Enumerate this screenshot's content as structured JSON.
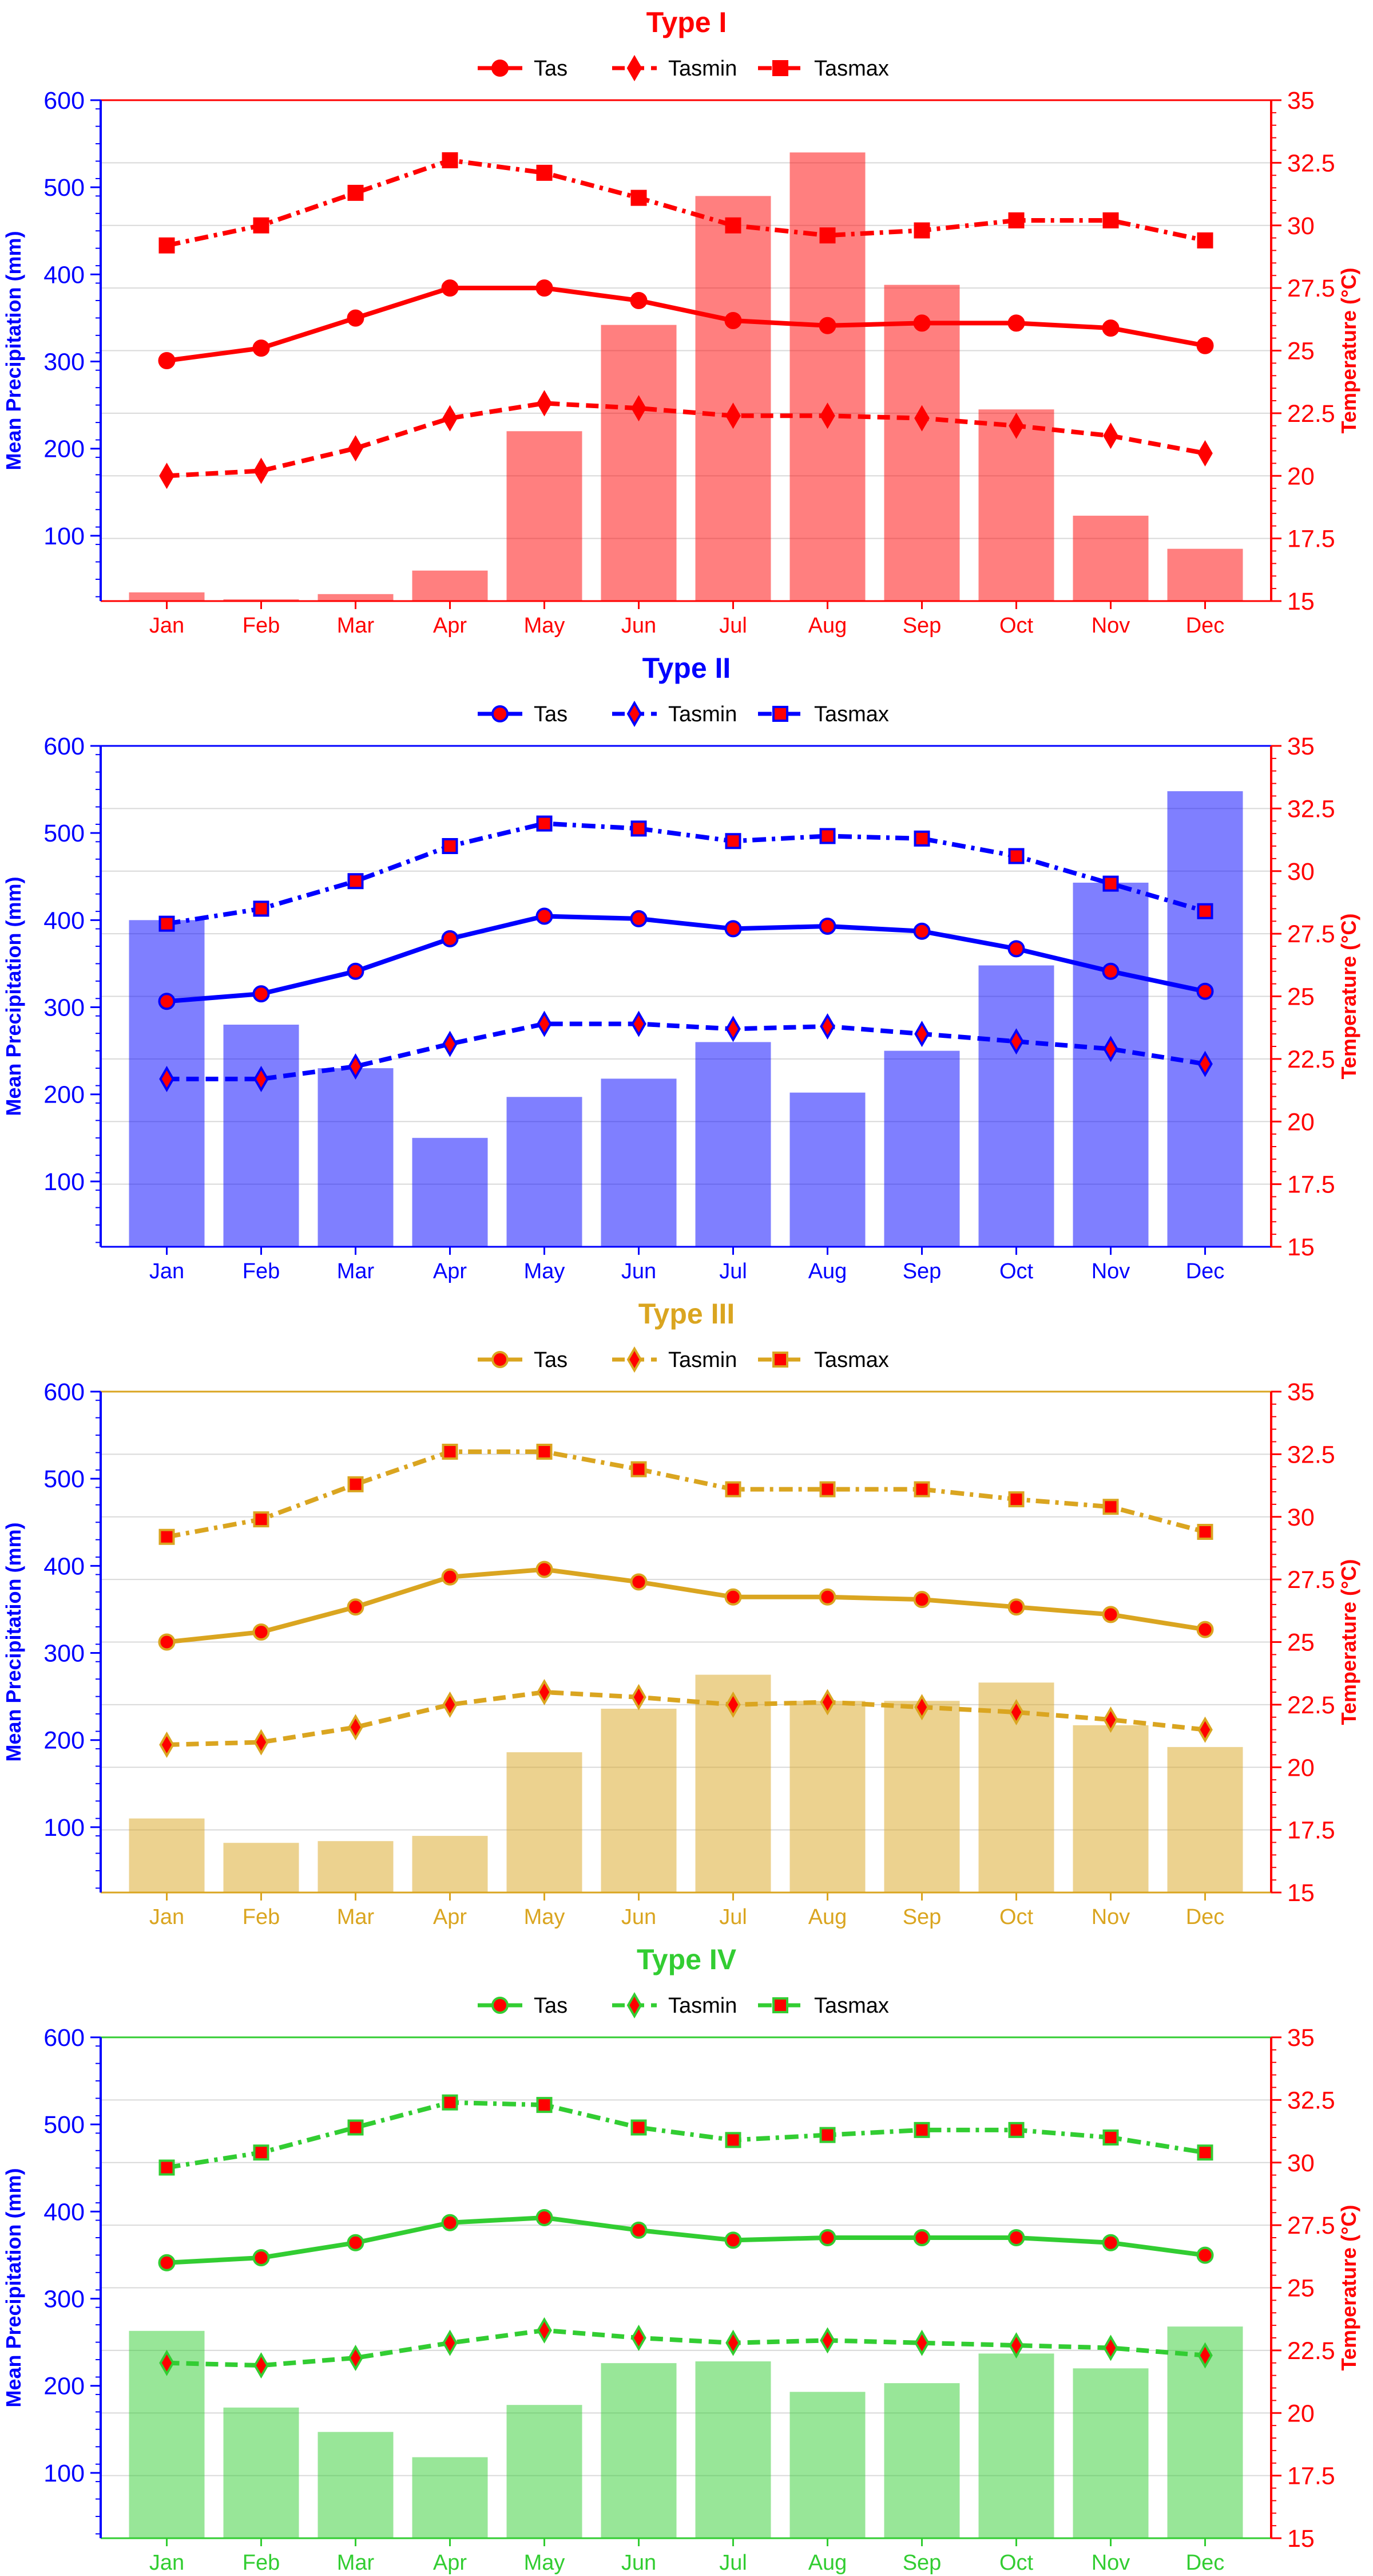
{
  "months": [
    "Jan",
    "Feb",
    "Mar",
    "Apr",
    "May",
    "Jun",
    "Jul",
    "Aug",
    "Sep",
    "Oct",
    "Nov",
    "Dec"
  ],
  "ylabel_left": "Mean Precipitation (mm)",
  "ylabel_right": "Temperature (°C)",
  "left_ticks": [
    100,
    200,
    300,
    400,
    500,
    600
  ],
  "right_ticks": [
    "15",
    "17.5",
    "20",
    "22.5",
    "25",
    "27.5",
    "30",
    "32.5",
    "35"
  ],
  "axis_colors": {
    "left": "#0000ff",
    "right": "#ff0000"
  },
  "chart_data": [
    {
      "type": "bar",
      "title": "Type I",
      "color": "#ff0000",
      "marker_face": "#ff0000",
      "categories": [
        "Jan",
        "Feb",
        "Mar",
        "Apr",
        "May",
        "Jun",
        "Jul",
        "Aug",
        "Sep",
        "Oct",
        "Nov",
        "Dec"
      ],
      "precip": [
        35,
        27,
        33,
        60,
        220,
        342,
        490,
        540,
        388,
        245,
        123,
        85
      ],
      "series": [
        {
          "name": "Tas",
          "marker": "circle",
          "style": "solid",
          "values": [
            24.6,
            25.1,
            26.3,
            27.5,
            27.5,
            27.0,
            26.2,
            26.0,
            26.1,
            26.1,
            25.9,
            25.2
          ]
        },
        {
          "name": "Tasmin",
          "marker": "diamond",
          "style": "dashed",
          "values": [
            20.0,
            20.2,
            21.1,
            22.3,
            22.9,
            22.7,
            22.4,
            22.4,
            22.3,
            22.0,
            21.6,
            20.9
          ]
        },
        {
          "name": "Tasmax",
          "marker": "square",
          "style": "dashdot",
          "values": [
            29.2,
            30.0,
            31.3,
            32.6,
            32.1,
            31.1,
            30.0,
            29.6,
            29.8,
            30.2,
            30.2,
            29.4
          ]
        }
      ],
      "ylim_left": [
        25,
        600
      ],
      "ylim_right": [
        15,
        35
      ],
      "legend": "top-center"
    },
    {
      "type": "bar",
      "title": "Type II",
      "color": "#0000ff",
      "marker_face": "#ff0000",
      "categories": [
        "Jan",
        "Feb",
        "Mar",
        "Apr",
        "May",
        "Jun",
        "Jul",
        "Aug",
        "Sep",
        "Oct",
        "Nov",
        "Dec"
      ],
      "precip": [
        400,
        280,
        230,
        150,
        197,
        218,
        260,
        202,
        250,
        348,
        443,
        548
      ],
      "series": [
        {
          "name": "Tas",
          "marker": "circle",
          "style": "solid",
          "values": [
            24.8,
            25.1,
            26.0,
            27.3,
            28.2,
            28.1,
            27.7,
            27.8,
            27.6,
            26.9,
            26.0,
            25.2
          ]
        },
        {
          "name": "Tasmin",
          "marker": "diamond",
          "style": "dashed",
          "values": [
            21.7,
            21.7,
            22.2,
            23.1,
            23.9,
            23.9,
            23.7,
            23.8,
            23.5,
            23.2,
            22.9,
            22.3
          ]
        },
        {
          "name": "Tasmax",
          "marker": "square",
          "style": "dashdot",
          "values": [
            27.9,
            28.5,
            29.6,
            31.0,
            31.9,
            31.7,
            31.2,
            31.4,
            31.3,
            30.6,
            29.5,
            28.4
          ]
        }
      ],
      "ylim_left": [
        25,
        600
      ],
      "ylim_right": [
        15,
        35
      ],
      "legend": "top-center"
    },
    {
      "type": "bar",
      "title": "Type III",
      "color": "#daa520",
      "marker_face": "#ff0000",
      "categories": [
        "Jan",
        "Feb",
        "Mar",
        "Apr",
        "May",
        "Jun",
        "Jul",
        "Aug",
        "Sep",
        "Oct",
        "Nov",
        "Dec"
      ],
      "precip": [
        110,
        82,
        84,
        90,
        186,
        236,
        275,
        245,
        245,
        266,
        217,
        192
      ],
      "series": [
        {
          "name": "Tas",
          "marker": "circle",
          "style": "solid",
          "values": [
            25.0,
            25.4,
            26.4,
            27.6,
            27.9,
            27.4,
            26.8,
            26.8,
            26.7,
            26.4,
            26.1,
            25.5
          ]
        },
        {
          "name": "Tasmin",
          "marker": "diamond",
          "style": "dashed",
          "values": [
            20.9,
            21.0,
            21.6,
            22.5,
            23.0,
            22.8,
            22.5,
            22.6,
            22.4,
            22.2,
            21.9,
            21.5
          ]
        },
        {
          "name": "Tasmax",
          "marker": "square",
          "style": "dashdot",
          "values": [
            29.2,
            29.9,
            31.3,
            32.6,
            32.6,
            31.9,
            31.1,
            31.1,
            31.1,
            30.7,
            30.4,
            29.4
          ]
        }
      ],
      "ylim_left": [
        25,
        600
      ],
      "ylim_right": [
        15,
        35
      ],
      "legend": "top-center"
    },
    {
      "type": "bar",
      "title": "Type IV",
      "color": "#32cd32",
      "marker_face": "#ff0000",
      "categories": [
        "Jan",
        "Feb",
        "Mar",
        "Apr",
        "May",
        "Jun",
        "Jul",
        "Aug",
        "Sep",
        "Oct",
        "Nov",
        "Dec"
      ],
      "precip": [
        263,
        175,
        147,
        118,
        178,
        226,
        228,
        193,
        203,
        237,
        220,
        268
      ],
      "series": [
        {
          "name": "Tas",
          "marker": "circle",
          "style": "solid",
          "values": [
            26.0,
            26.2,
            26.8,
            27.6,
            27.8,
            27.3,
            26.9,
            27.0,
            27.0,
            27.0,
            26.8,
            26.3
          ]
        },
        {
          "name": "Tasmin",
          "marker": "diamond",
          "style": "dashed",
          "values": [
            22.0,
            21.9,
            22.2,
            22.8,
            23.3,
            23.0,
            22.8,
            22.9,
            22.8,
            22.7,
            22.6,
            22.3
          ]
        },
        {
          "name": "Tasmax",
          "marker": "square",
          "style": "dashdot",
          "values": [
            29.8,
            30.4,
            31.4,
            32.4,
            32.3,
            31.4,
            30.9,
            31.1,
            31.3,
            31.3,
            31.0,
            30.4
          ]
        }
      ],
      "ylim_left": [
        25,
        600
      ],
      "ylim_right": [
        15,
        35
      ],
      "legend": "top-center"
    }
  ]
}
